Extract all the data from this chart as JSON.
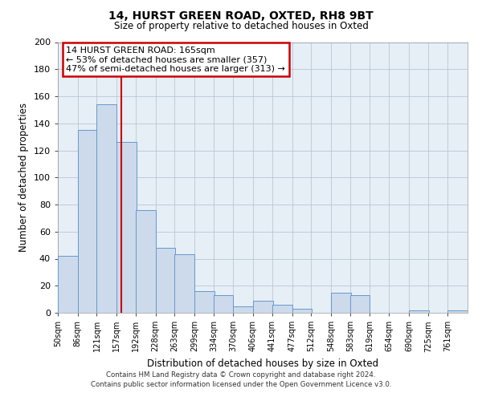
{
  "title": "14, HURST GREEN ROAD, OXTED, RH8 9BT",
  "subtitle": "Size of property relative to detached houses in Oxted",
  "xlabel": "Distribution of detached houses by size in Oxted",
  "ylabel": "Number of detached properties",
  "bar_color": "#ccdaeb",
  "bar_edgecolor": "#6699cc",
  "bg_color": "#e6eef6",
  "vline_x": 165,
  "vline_color": "#cc0000",
  "annotation_title": "14 HURST GREEN ROAD: 165sqm",
  "annotation_line1": "← 53% of detached houses are smaller (357)",
  "annotation_line2": "47% of semi-detached houses are larger (313) →",
  "bins": [
    50,
    86,
    121,
    157,
    192,
    228,
    263,
    299,
    334,
    370,
    406,
    441,
    477,
    512,
    548,
    583,
    619,
    654,
    690,
    725,
    761
  ],
  "counts": [
    42,
    135,
    154,
    126,
    76,
    48,
    43,
    16,
    13,
    5,
    9,
    6,
    3,
    0,
    15,
    13,
    0,
    0,
    2,
    0,
    2
  ],
  "ylim": [
    0,
    200
  ],
  "yticks": [
    0,
    20,
    40,
    60,
    80,
    100,
    120,
    140,
    160,
    180,
    200
  ],
  "footer1": "Contains HM Land Registry data © Crown copyright and database right 2024.",
  "footer2": "Contains public sector information licensed under the Open Government Licence v3.0."
}
